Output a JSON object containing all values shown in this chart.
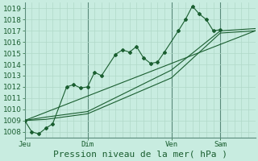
{
  "xlabel": "Pression niveau de la mer( hPa )",
  "background_color": "#c8ece0",
  "grid_color": "#b0d8c8",
  "line_color": "#1a5e30",
  "sep_color": "#5a8a7a",
  "ylim": [
    1007.5,
    1019.5
  ],
  "xlim": [
    0,
    33
  ],
  "day_positions": [
    0,
    9,
    21,
    28
  ],
  "day_labels": [
    "Jeu",
    "Dim",
    "Ven",
    "Sam"
  ],
  "series": [
    [
      0,
      1009.0,
      1,
      1008.0,
      2,
      1007.8,
      3,
      1008.3,
      4,
      1008.7,
      6,
      1012.0,
      7,
      1012.2,
      8,
      1011.9,
      9,
      1012.0,
      10,
      1013.3,
      11,
      1013.0,
      13,
      1014.9,
      14,
      1015.3,
      15,
      1015.1,
      16,
      1015.6,
      17,
      1014.6,
      18,
      1014.1,
      19,
      1014.2,
      20,
      1015.1,
      22,
      1017.0,
      23,
      1018.0,
      24,
      1019.2,
      25,
      1018.5,
      26,
      1018.0,
      27,
      1017.0,
      28,
      1017.1
    ],
    [
      0,
      1009.0,
      3,
      1009.3,
      9,
      1009.8,
      21,
      1013.5,
      28,
      1017.0,
      33,
      1017.2
    ],
    [
      0,
      1009.0,
      3,
      1009.1,
      9,
      1009.6,
      21,
      1012.8,
      28,
      1016.8,
      33,
      1017.0
    ],
    [
      0,
      1009.0,
      33,
      1017.0
    ]
  ],
  "xlabel_fontsize": 8,
  "tick_labelsize": 6.5,
  "tick_color": "#1a5e30",
  "xlabel_color": "#1a5e30"
}
